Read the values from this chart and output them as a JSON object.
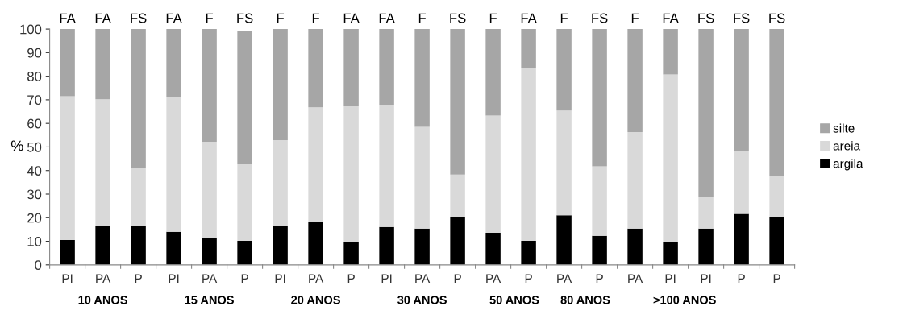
{
  "chart_data": {
    "type": "bar",
    "stacked": true,
    "ylabel": "%",
    "categories": [
      "PI",
      "PA",
      "P",
      "PI",
      "PA",
      "P",
      "PI",
      "PA",
      "P",
      "PI",
      "PA",
      "P",
      "PA",
      "P",
      "PA",
      "P",
      "PA",
      "PI",
      "PI",
      "P",
      "P"
    ],
    "series": [
      {
        "name": "argila",
        "color": "#000000",
        "values": [
          10.5,
          16.7,
          16.3,
          14,
          11.2,
          10.2,
          16.4,
          18.2,
          9.5,
          16.1,
          15.4,
          20.3,
          13.6,
          10.2,
          21,
          12.3,
          15.4,
          9.8,
          15.4,
          21.6,
          20.2
        ]
      },
      {
        "name": "areia",
        "color": "#d9d9d9",
        "values": [
          61,
          53.5,
          24.7,
          57.3,
          41,
          32.4,
          36.5,
          48.6,
          57.9,
          51.8,
          43.1,
          18,
          49.7,
          73.2,
          44.4,
          29.5,
          40.9,
          70.9,
          13.5,
          26.7,
          17.3
        ]
      },
      {
        "name": "silte",
        "color": "#a6a6a6",
        "values": [
          28.5,
          29.8,
          59,
          28.7,
          47.8,
          56.6,
          47.1,
          33.2,
          32.6,
          32.1,
          41.5,
          61.7,
          36.7,
          16.6,
          34.6,
          58.2,
          43.7,
          19.3,
          71.1,
          51.7,
          62.5
        ]
      }
    ],
    "ylim": [
      0,
      100
    ],
    "yticks": [
      0,
      10,
      20,
      30,
      40,
      50,
      60,
      70,
      80,
      90,
      100
    ],
    "grid": false,
    "legend": "right",
    "annotations": [
      "FA",
      "FA",
      "FS",
      "FA",
      "F",
      "FS",
      "F",
      "F",
      "FA",
      "FA",
      "F",
      "FS",
      "F",
      "FA",
      "F",
      "FS",
      "F",
      "FA",
      "FS",
      "FS",
      "FS",
      "10 ANOS",
      "15 ANOS",
      "20 ANOS",
      "30 ANOS",
      "50 ANOS",
      "80 ANOS",
      ">100 ANOS"
    ]
  }
}
